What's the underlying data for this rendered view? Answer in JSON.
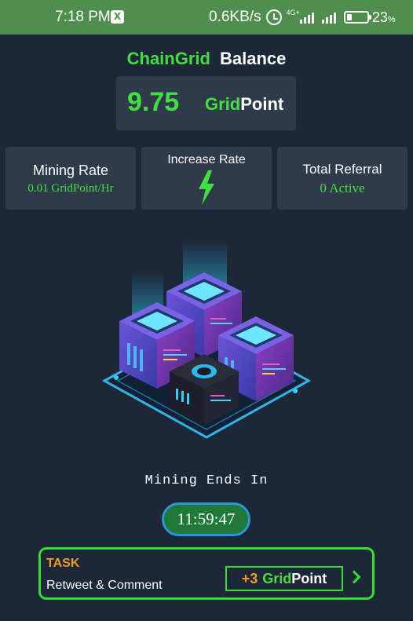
{
  "status_bar": {
    "time": "7:18 PM",
    "x_badge": "X",
    "speed": "0.6KB/s",
    "network": "4G+",
    "battery": "23",
    "battery_unit": "%"
  },
  "header": {
    "brand": "ChainGrid",
    "title": "Balance",
    "balance_value": "9.75",
    "unit_prefix": "Grid",
    "unit_suffix": "Point"
  },
  "stats": {
    "mining_rate_label": "Mining Rate",
    "mining_rate_value": "0.01 GridPoint/Hr",
    "increase_rate_label": "Increase Rate",
    "total_referral_label": "Total Referral",
    "total_referral_value": "0 Active"
  },
  "mining": {
    "label": "Mining Ends In",
    "timer": "11:59:47"
  },
  "task": {
    "title": "TASK",
    "description": "Retweet & Comment",
    "reward_amount": "+3",
    "reward_prefix": "Grid",
    "reward_suffix": "Point"
  },
  "colors": {
    "background": "#1c2738",
    "accent_green": "#3fe03f",
    "accent_orange": "#f59a1c",
    "card": "#2f3a4b",
    "status_bar": "#4f8e4c"
  }
}
